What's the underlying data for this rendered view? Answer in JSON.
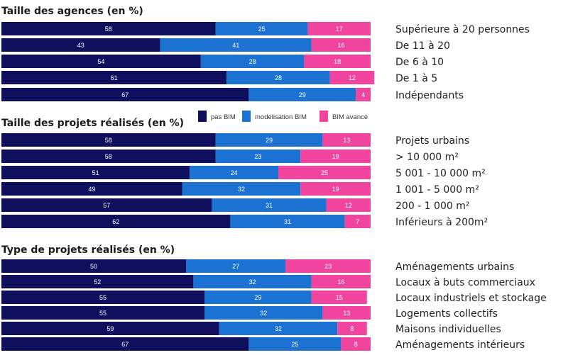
{
  "colors": {
    "pas_bim": "#0f0f5e",
    "modelisation_bim": "#1b72d3",
    "bim_avance": "#f0449f"
  },
  "legend": {
    "pas_bim": "pas BIM",
    "modelisation_bim": "modélisation BIM",
    "bim_avance": "BIM avancé"
  },
  "chart_data": [
    {
      "type": "bar",
      "orientation": "horizontal",
      "stacked": true,
      "title": "Taille des agences (en %)",
      "categories": [
        "Supérieure à 20 personnes",
        "De 11 à 20",
        "De 6 à 10",
        "De 1 à 5",
        "Indépendants"
      ],
      "series": [
        {
          "name": "pas BIM",
          "values": [
            58,
            43,
            54,
            61,
            67
          ]
        },
        {
          "name": "modélisation BIM",
          "values": [
            25,
            41,
            28,
            28,
            29
          ]
        },
        {
          "name": "BIM avancé",
          "values": [
            17,
            16,
            18,
            12,
            4
          ]
        }
      ],
      "xlim": [
        0,
        100
      ]
    },
    {
      "type": "bar",
      "orientation": "horizontal",
      "stacked": true,
      "title": "Taille des projets réalisés (en %)",
      "categories": [
        "Projets urbains",
        "> 10 000 m²",
        "5 001 - 10 000 m²",
        "1 001 - 5 000 m²",
        "200 - 1 000 m²",
        "Inférieurs à 200m²"
      ],
      "series": [
        {
          "name": "pas BIM",
          "values": [
            58,
            58,
            51,
            49,
            57,
            62
          ]
        },
        {
          "name": "modélisation BIM",
          "values": [
            29,
            23,
            24,
            32,
            31,
            31
          ]
        },
        {
          "name": "BIM avancé",
          "values": [
            13,
            19,
            25,
            19,
            12,
            7
          ]
        }
      ],
      "xlim": [
        0,
        100
      ]
    },
    {
      "type": "bar",
      "orientation": "horizontal",
      "stacked": true,
      "title": "Type de projets réalisés (en %)",
      "categories": [
        "Aménagements urbains",
        "Locaux à buts commerciaux",
        "Locaux industriels et stockage",
        "Logements collectifs",
        "Maisons individuelles",
        "Aménagements intérieurs"
      ],
      "series": [
        {
          "name": "pas BIM",
          "values": [
            50,
            52,
            55,
            55,
            59,
            67
          ]
        },
        {
          "name": "modélisation BIM",
          "values": [
            27,
            32,
            29,
            32,
            32,
            25
          ]
        },
        {
          "name": "BIM avancé",
          "values": [
            23,
            16,
            15,
            13,
            8,
            8
          ]
        }
      ],
      "xlim": [
        0,
        100
      ]
    }
  ]
}
